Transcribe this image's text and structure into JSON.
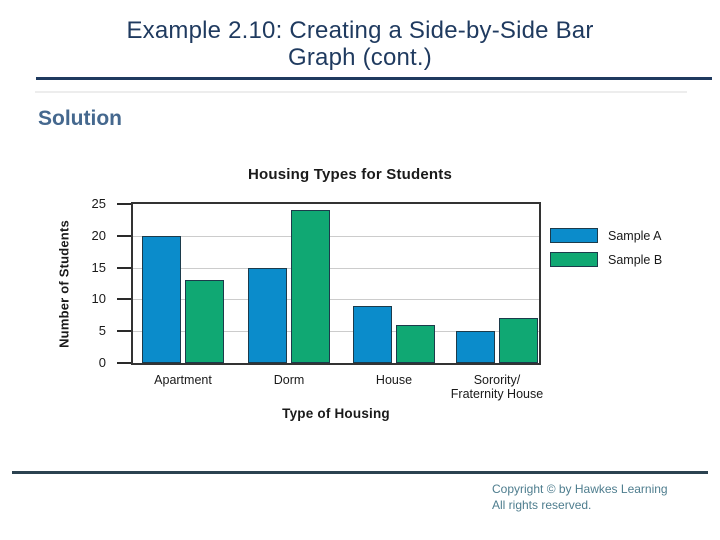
{
  "slide": {
    "title_lines": [
      "Example 2.10: Creating a Side-by-Side Bar",
      "Graph (cont.)"
    ],
    "section_heading": "Solution",
    "footer_lines": [
      "Copyright © by Hawkes Learning",
      "All rights reserved."
    ]
  },
  "colors": {
    "title_navy": "#1f3a5f",
    "heading_blue": "#45688e",
    "sample_a_blue": "#0b8ccb",
    "sample_b_green": "#10a873",
    "bar_outline": "#1c3b4b",
    "footer_text": "#4e7d8e",
    "footer_rule": "#2b4250"
  },
  "chart_data": {
    "type": "bar",
    "title": "Housing Types for Students",
    "xlabel": "Type of Housing",
    "ylabel": "Number of Students",
    "categories": [
      "Apartment",
      "Dorm",
      "House",
      "Sorority/\nFraternity House"
    ],
    "series": [
      {
        "name": "Sample A",
        "color": "#0b8ccb",
        "values": [
          20,
          15,
          9,
          5
        ]
      },
      {
        "name": "Sample B",
        "color": "#10a873",
        "values": [
          13,
          24,
          6,
          7
        ]
      }
    ],
    "ylim": [
      0,
      25
    ],
    "yticks": [
      0,
      5,
      10,
      15,
      20,
      25
    ],
    "grid": true,
    "legend_position": "right"
  }
}
